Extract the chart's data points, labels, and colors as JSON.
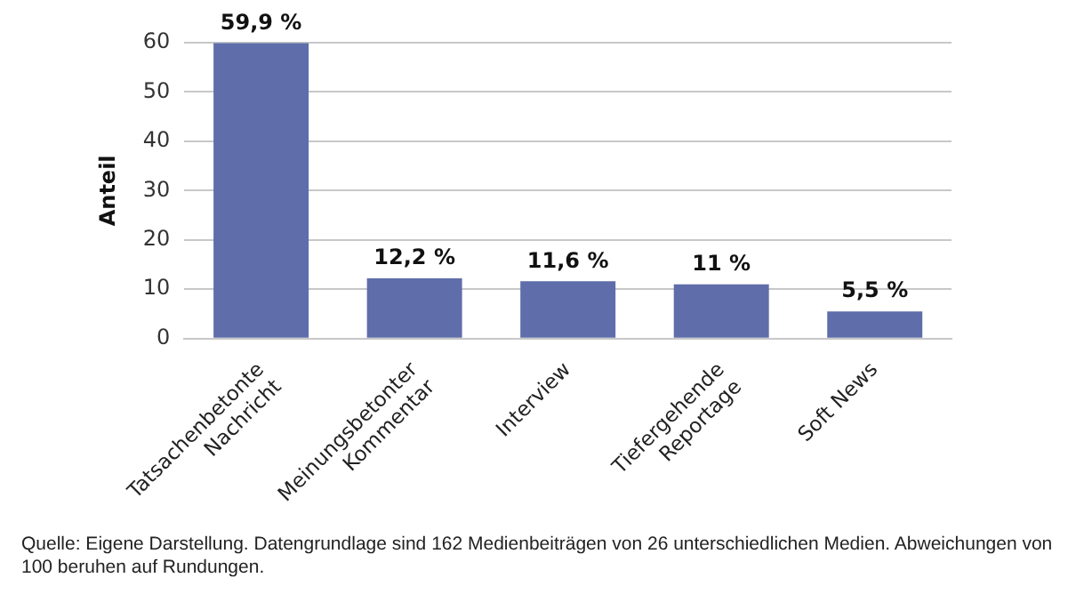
{
  "chart_data": {
    "type": "bar",
    "ylabel": "Anteil",
    "categories": [
      "Tatsachenbetonte Nachricht",
      "Meinungsbetonter Kommentar",
      "Interview",
      "Tiefergehende Reportage",
      "Soft News"
    ],
    "values": [
      59.9,
      12.2,
      11.6,
      11,
      5.5
    ],
    "value_labels": [
      "59,9 %",
      "12,2 %",
      "11,6 %",
      "11 %",
      "5,5 %"
    ],
    "color": "#5f6eaa",
    "ylim": [
      0,
      60
    ],
    "yticks": [
      0,
      10,
      20,
      30,
      40,
      50,
      60
    ],
    "grid": "y",
    "legend": false,
    "annotations": [
      "Quelle: Eigene Darstellung. Datengrundlage sind 162 Medienbeiträgen von 26 unterschiedlichen Medien. Abweichungen von 100 beruhen auf Rundungen."
    ]
  }
}
